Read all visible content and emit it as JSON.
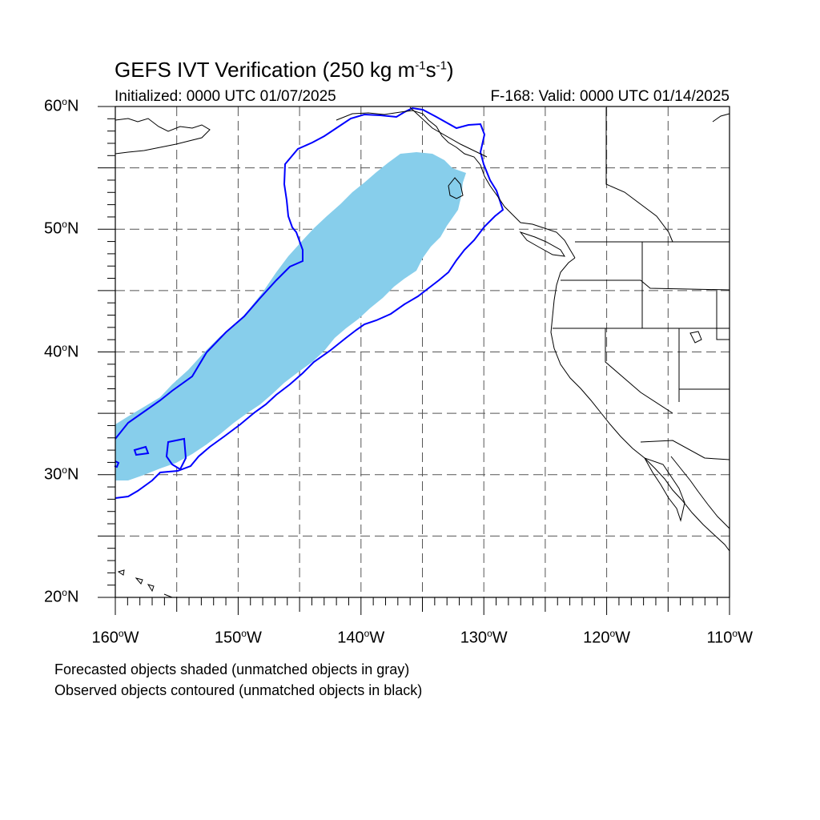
{
  "title": {
    "text": "GEFS IVT Verification (250 kg m",
    "exp1": "-1",
    "mid": "s",
    "exp2": "-1",
    "end": ")"
  },
  "initialized": "Initialized: 0000 UTC 01/07/2025",
  "valid": "F-168: Valid: 0000 UTC 01/14/2025",
  "degree_symbol": "o",
  "lat_labels": [
    {
      "value": 60,
      "num": "60",
      "hem": "N"
    },
    {
      "value": 50,
      "num": "50",
      "hem": "N"
    },
    {
      "value": 40,
      "num": "40",
      "hem": "N"
    },
    {
      "value": 30,
      "num": "30",
      "hem": "N"
    },
    {
      "value": 20,
      "num": "20",
      "hem": "N"
    }
  ],
  "lon_labels": [
    {
      "value": -160,
      "num": "160",
      "hem": "W"
    },
    {
      "value": -150,
      "num": "150",
      "hem": "W"
    },
    {
      "value": -140,
      "num": "140",
      "hem": "W"
    },
    {
      "value": -130,
      "num": "130",
      "hem": "W"
    },
    {
      "value": -120,
      "num": "120",
      "hem": "W"
    },
    {
      "value": -110,
      "num": "110",
      "hem": "W"
    }
  ],
  "captions": [
    "Forecasted objects shaded (unmatched objects in gray)",
    "Observed objects contoured (unmatched objects in black)"
  ],
  "map_extent": {
    "lon_min": -160,
    "lon_max": -110,
    "lat_min": 20,
    "lat_max": 60
  },
  "colors": {
    "forecast_fill": "#87ceeb",
    "observed_contour": "#0000ff",
    "coast": "#000000",
    "grid": "#000000"
  }
}
